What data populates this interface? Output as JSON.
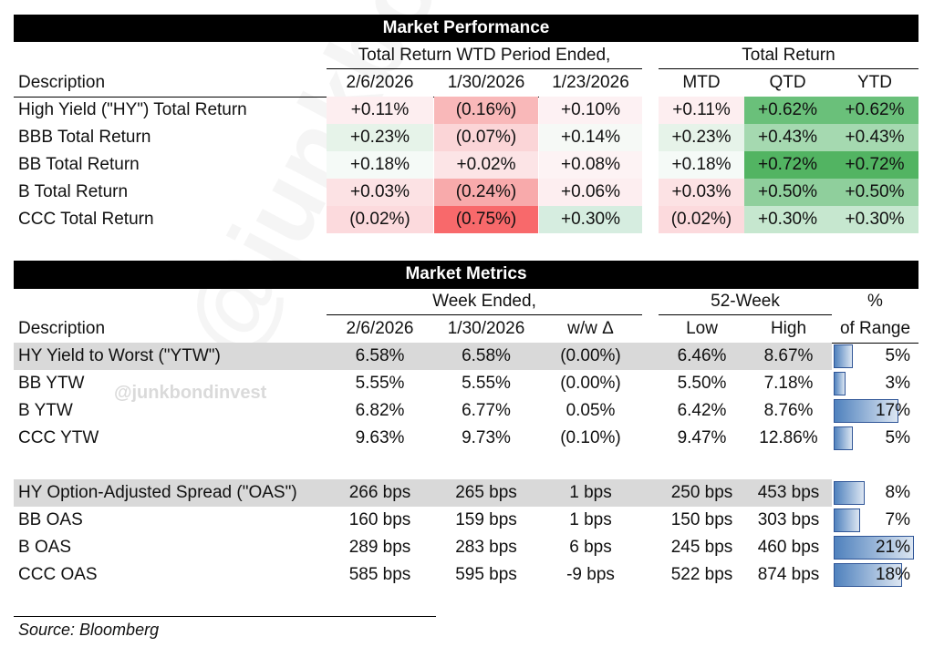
{
  "performance": {
    "title": "Market Performance",
    "period_header": "Total Return WTD Period Ended,",
    "total_return_header": "Total Return",
    "description_header": "Description",
    "col_headers": [
      "2/6/2026",
      "1/30/2026",
      "1/23/2026",
      "MTD",
      "QTD",
      "YTD"
    ],
    "rows": [
      {
        "label": "High Yield (\"HY\") Total Return",
        "values": [
          "+0.11%",
          "(0.16%)",
          "+0.10%",
          "+0.11%",
          "+0.62%",
          "+0.62%"
        ],
        "colors": [
          "#fdeef0",
          "#f9b8b9",
          "#fdf1f3",
          "#fdeef0",
          "#6ac07a",
          "#6ac07a"
        ]
      },
      {
        "label": "BBB Total Return",
        "values": [
          "+0.23%",
          "(0.07%)",
          "+0.14%",
          "+0.23%",
          "+0.43%",
          "+0.43%"
        ],
        "colors": [
          "#e6f3e9",
          "#fbd5d7",
          "#f6f9f6",
          "#e6f3e9",
          "#a5d9b0",
          "#a5d9b0"
        ]
      },
      {
        "label": "BB Total Return",
        "values": [
          "+0.18%",
          "+0.02%",
          "+0.08%",
          "+0.18%",
          "+0.72%",
          "+0.72%"
        ],
        "colors": [
          "#f5faf7",
          "#fce4e6",
          "#fdf3f4",
          "#f5faf7",
          "#52b462",
          "#52b462"
        ]
      },
      {
        "label": "B Total Return",
        "values": [
          "+0.03%",
          "(0.24%)",
          "+0.06%",
          "+0.03%",
          "+0.50%",
          "+0.50%"
        ],
        "colors": [
          "#fce2e4",
          "#f8aaab",
          "#fdeef0",
          "#fce2e4",
          "#8fcf9c",
          "#8fcf9c"
        ]
      },
      {
        "label": "CCC Total Return",
        "values": [
          "(0.02%)",
          "(0.75%)",
          "+0.30%",
          "(0.02%)",
          "+0.30%",
          "+0.30%"
        ],
        "colors": [
          "#fcdadd",
          "#f8696b",
          "#d6ede0",
          "#fcdadd",
          "#c6e7cf",
          "#c6e7cf"
        ]
      }
    ]
  },
  "metrics": {
    "title": "Market Metrics",
    "week_header": "Week Ended,",
    "week52_header": "52-Week",
    "pct_header": "%",
    "description_header": "Description",
    "col_headers": [
      "2/6/2026",
      "1/30/2026",
      "w/w Δ",
      "Low",
      "High",
      "of Range"
    ],
    "rows": [
      {
        "label": "HY Yield to Worst (\"YTW\")",
        "values": [
          "6.58%",
          "6.58%",
          "(0.00%)",
          "6.46%",
          "8.67%"
        ],
        "range_pct": "5%",
        "range_frac": 0.05,
        "highlight": true
      },
      {
        "label": "BB YTW",
        "values": [
          "5.55%",
          "5.55%",
          "(0.00%)",
          "5.50%",
          "7.18%"
        ],
        "range_pct": "3%",
        "range_frac": 0.03,
        "highlight": false
      },
      {
        "label": "B YTW",
        "values": [
          "6.82%",
          "6.77%",
          "0.05%",
          "6.42%",
          "8.76%"
        ],
        "range_pct": "17%",
        "range_frac": 0.17,
        "highlight": false
      },
      {
        "label": "CCC YTW",
        "values": [
          "9.63%",
          "9.73%",
          "(0.10%)",
          "9.47%",
          "12.86%"
        ],
        "range_pct": "5%",
        "range_frac": 0.05,
        "highlight": false
      },
      {
        "label": "HY Option-Adjusted Spread (\"OAS\")",
        "values": [
          "266 bps",
          "265 bps",
          "1 bps",
          "250 bps",
          "453 bps"
        ],
        "range_pct": "8%",
        "range_frac": 0.08,
        "highlight": true
      },
      {
        "label": "BB OAS",
        "values": [
          "160 bps",
          "159 bps",
          "1 bps",
          "150 bps",
          "303 bps"
        ],
        "range_pct": "7%",
        "range_frac": 0.07,
        "highlight": false
      },
      {
        "label": "B OAS",
        "values": [
          "289 bps",
          "283 bps",
          "6 bps",
          "245 bps",
          "460 bps"
        ],
        "range_pct": "21%",
        "range_frac": 0.21,
        "highlight": false
      },
      {
        "label": "CCC OAS",
        "values": [
          "585 bps",
          "595 bps",
          "-9 bps",
          "522 bps",
          "874 bps"
        ],
        "range_pct": "18%",
        "range_frac": 0.18,
        "highlight": false
      }
    ]
  },
  "watermark": "@junkbondinvest",
  "source": "Source: Bloomberg"
}
